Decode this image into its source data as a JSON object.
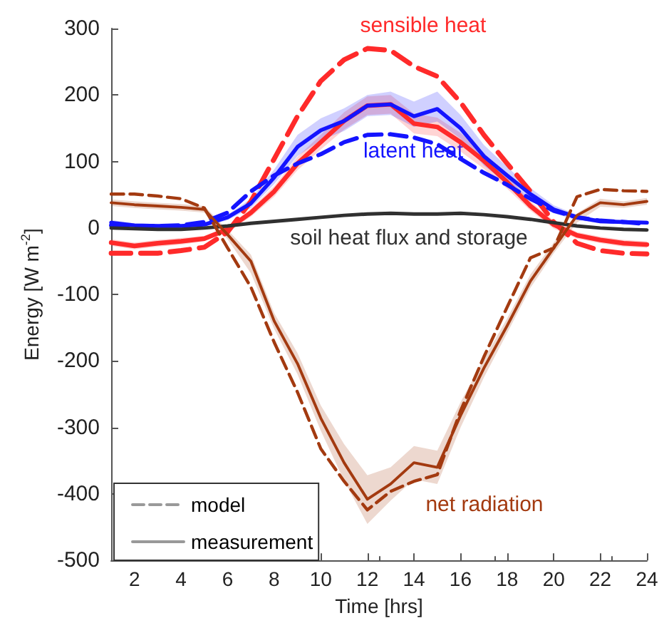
{
  "chart_data": {
    "type": "line",
    "xlabel": "Time [hrs]",
    "ylabel": "Energy [W m$^{-2}$]",
    "x": [
      1,
      2,
      3,
      4,
      5,
      6,
      7,
      8,
      9,
      10,
      11,
      12,
      13,
      14,
      15,
      16,
      17,
      18,
      19,
      20,
      21,
      22,
      23,
      24
    ],
    "xlim": [
      1,
      24
    ],
    "xticks": [
      2,
      4,
      6,
      8,
      10,
      12,
      14,
      16,
      18,
      20,
      22,
      24
    ],
    "ylim": [
      -500,
      300
    ],
    "yticks": [
      -500,
      -400,
      -300,
      -200,
      -100,
      0,
      100,
      200,
      300
    ],
    "grid": false,
    "legend": "bottom left",
    "marker": "none",
    "series": [
      {
        "color": "#ff2a2a",
        "line_style": "dashed",
        "values": [
          -38,
          -38,
          -38,
          -34,
          -29,
          -6,
          40,
          104,
          168,
          221,
          253,
          270,
          267,
          243,
          228,
          189,
          140,
          97,
          55,
          9,
          -23,
          -34,
          -38,
          -39
        ]
      },
      {
        "color": "#ff2a2a",
        "line_style": "solid",
        "values": [
          -22,
          -27,
          -23,
          -20,
          -16,
          -2,
          23,
          55,
          97,
          129,
          161,
          184,
          186,
          157,
          152,
          129,
          101,
          69,
          33,
          5,
          -11,
          -18,
          -23,
          -25
        ],
        "lower": [
          -27,
          -32,
          -28,
          -25,
          -20,
          -6,
          17,
          47,
          87,
          118,
          148,
          170,
          172,
          142,
          138,
          115,
          89,
          59,
          26,
          -1,
          -16,
          -23,
          -28,
          -30
        ],
        "upper": [
          -17,
          -22,
          -18,
          -15,
          -12,
          2,
          29,
          63,
          107,
          140,
          174,
          198,
          200,
          172,
          166,
          143,
          113,
          79,
          40,
          11,
          -6,
          -13,
          -18,
          -20
        ]
      },
      {
        "color": "#1414ff",
        "line_style": "dashed",
        "values": [
          4,
          3,
          3,
          4,
          9,
          23,
          55,
          79,
          97,
          111,
          129,
          140,
          141,
          136,
          126,
          104,
          83,
          65,
          44,
          26,
          16,
          11,
          9,
          6
        ]
      },
      {
        "color": "#1414ff",
        "line_style": "solid",
        "values": [
          8,
          4,
          3,
          3,
          5,
          16,
          37,
          76,
          122,
          147,
          161,
          184,
          186,
          168,
          179,
          150,
          108,
          79,
          51,
          28,
          16,
          10,
          9,
          8
        ],
        "lower": [
          4,
          1,
          0,
          0,
          2,
          12,
          30,
          66,
          108,
          132,
          146,
          168,
          170,
          152,
          160,
          134,
          94,
          67,
          42,
          22,
          12,
          7,
          6,
          5
        ],
        "upper": [
          12,
          7,
          6,
          6,
          8,
          20,
          44,
          88,
          140,
          165,
          180,
          200,
          205,
          190,
          205,
          170,
          125,
          92,
          60,
          34,
          20,
          13,
          12,
          11
        ]
      },
      {
        "color": "#303030",
        "line_style": "solid",
        "values": [
          0,
          -1,
          -2,
          -2,
          0,
          3,
          7,
          10,
          13,
          16,
          19,
          21,
          22,
          21,
          21,
          22,
          20,
          17,
          13,
          8,
          3,
          0,
          -2,
          -3
        ]
      },
      {
        "color": "#a33a10",
        "line_style": "dashed",
        "values": [
          51,
          51,
          48,
          44,
          30,
          -30,
          -89,
          -172,
          -247,
          -332,
          -381,
          -424,
          -396,
          -381,
          -371,
          -275,
          -194,
          -119,
          -45,
          -30,
          47,
          58,
          56,
          55
        ]
      },
      {
        "color": "#a33a10",
        "line_style": "solid",
        "values": [
          38,
          35,
          33,
          31,
          28,
          -10,
          -50,
          -140,
          -204,
          -286,
          -353,
          -408,
          -385,
          -353,
          -360,
          -282,
          -211,
          -147,
          -80,
          -30,
          19,
          38,
          35,
          40
        ],
        "lower": [
          33,
          30,
          28,
          26,
          23,
          -17,
          -68,
          -152,
          -220,
          -305,
          -380,
          -445,
          -410,
          -378,
          -385,
          -300,
          -225,
          -158,
          -90,
          -38,
          8,
          32,
          30,
          35
        ],
        "upper": [
          43,
          40,
          38,
          36,
          33,
          -3,
          -40,
          -128,
          -188,
          -267,
          -325,
          -372,
          -360,
          -328,
          -335,
          -262,
          -197,
          -136,
          -70,
          -22,
          22,
          44,
          40,
          45
        ]
      },
      {
        "name": "model",
        "color": "#999999",
        "line_style": "dashed",
        "values": [
          null,
          null,
          null,
          null,
          null,
          null,
          null,
          null,
          null,
          null,
          null,
          null,
          null,
          null,
          null,
          null,
          null,
          null,
          null,
          null,
          null,
          null,
          null,
          null
        ]
      },
      {
        "name": "measurement",
        "color": "#999999",
        "line_style": "solid",
        "values": [
          null,
          null,
          null,
          null,
          null,
          null,
          null,
          null,
          null,
          null,
          null,
          null,
          null,
          null,
          null,
          null,
          null,
          null,
          null,
          null,
          null,
          null,
          null,
          null
        ]
      }
    ],
    "annotations": [
      "sensible heat",
      "latent heat",
      "soil heat flux and storage",
      "net radiation"
    ]
  }
}
